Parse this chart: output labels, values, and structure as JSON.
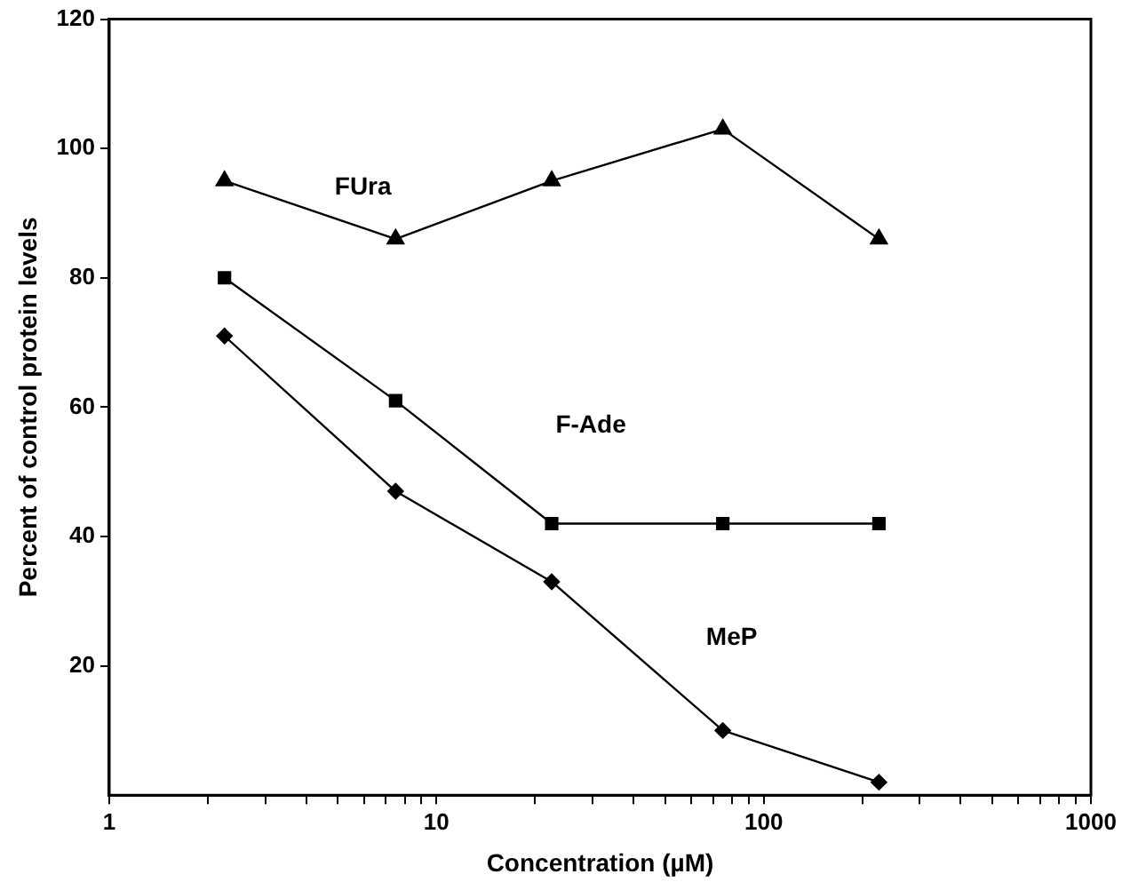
{
  "chart_data": {
    "type": "line",
    "xlabel": "Concentration (µM)",
    "ylabel": "Percent of control protein levels",
    "x": [
      2.25,
      7.5,
      22.5,
      75,
      225
    ],
    "series": [
      {
        "name": "FUra",
        "color": "#000000",
        "marker": "triangle",
        "values": [
          95,
          86,
          95,
          103,
          86
        ]
      },
      {
        "name": "F-Ade",
        "color": "#000000",
        "marker": "square",
        "values": [
          80,
          61,
          42,
          42,
          42
        ]
      },
      {
        "name": "MeP",
        "color": "#000000",
        "marker": "diamond",
        "values": [
          71,
          47,
          33,
          10,
          2
        ]
      }
    ],
    "log": "x",
    "xlim": [
      1,
      1000
    ],
    "xticks": [
      1,
      {
        "value": 2,
        "label": null
      },
      {
        "value": 3,
        "label": null
      },
      {
        "value": 4,
        "label": null
      },
      {
        "value": 5,
        "label": null
      },
      {
        "value": 6,
        "label": null
      },
      {
        "value": 7,
        "label": null
      },
      {
        "value": 8,
        "label": null
      },
      {
        "value": 9,
        "label": null
      },
      10,
      {
        "value": 20,
        "label": null
      },
      {
        "value": 30,
        "label": null
      },
      {
        "value": 40,
        "label": null
      },
      {
        "value": 50,
        "label": null
      },
      {
        "value": 60,
        "label": null
      },
      {
        "value": 70,
        "label": null
      },
      {
        "value": 80,
        "label": null
      },
      {
        "value": 90,
        "label": null
      },
      100,
      {
        "value": 200,
        "label": null
      },
      {
        "value": 300,
        "label": null
      },
      {
        "value": 400,
        "label": null
      },
      {
        "value": 500,
        "label": null
      },
      {
        "value": 600,
        "label": null
      },
      {
        "value": 700,
        "label": null
      },
      {
        "value": 800,
        "label": null
      },
      {
        "value": 900,
        "label": null
      },
      1000
    ],
    "ylim": [
      0,
      120
    ],
    "yticks": [
      20,
      40,
      60,
      80,
      100,
      120
    ],
    "grid": false,
    "legend": false
  }
}
